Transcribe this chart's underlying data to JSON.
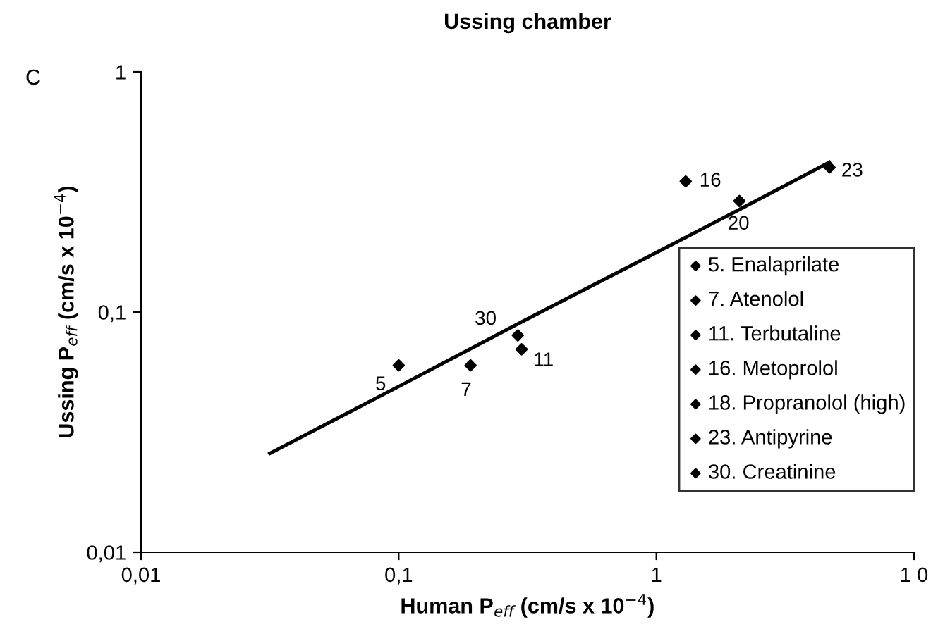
{
  "chart_data": {
    "type": "scatter",
    "title": "Ussing chamber",
    "xlabel": "Human P$_{eff}$ (cm/s x 10$^{−4}$)",
    "ylabel": "Ussing P$_{eff}$ (cm/s x 10$^{−4}$)",
    "log": "xy",
    "xlim": [
      0.01,
      10
    ],
    "ylim": [
      0.01,
      1
    ],
    "xticks": [
      {
        "value": 0.01,
        "label": "0,01"
      },
      {
        "value": 0.1,
        "label": "0,1"
      },
      1,
      {
        "value": 10,
        "label": "1 0"
      }
    ],
    "yticks": [
      {
        "value": 0.01,
        "label": "0,01"
      },
      {
        "value": 0.1,
        "label": "0,1"
      },
      1
    ],
    "grid": false,
    "legend": "right",
    "marker": "diamond",
    "series": [
      {
        "name": "5. Enalaprilate",
        "color": "#000000",
        "x": [
          0.1
        ],
        "values": [
          0.06
        ]
      },
      {
        "name": "7. Atenolol",
        "color": "#000000",
        "x": [
          0.19
        ],
        "values": [
          0.06
        ]
      },
      {
        "name": "11. Terbutaline",
        "color": "#000000",
        "x": [
          0.3
        ],
        "values": [
          0.07
        ]
      },
      {
        "name": "16. Metoprolol",
        "color": "#000000",
        "x": [
          1.3
        ],
        "values": [
          0.35
        ]
      },
      {
        "name": "18. Propranolol (high)",
        "color": "#000000",
        "x": [
          2.1
        ],
        "values": [
          0.29
        ]
      },
      {
        "name": "23. Antipyrine",
        "color": "#000000",
        "x": [
          4.7
        ],
        "values": [
          0.4
        ]
      },
      {
        "name": "30. Creatinine",
        "color": "#000000",
        "x": [
          0.29
        ],
        "values": [
          0.08
        ]
      },
      {
        "type": "line",
        "color": "#000000",
        "marker": "none",
        "x": [
          0.0316,
          0.1,
          0.3,
          1,
          2,
          4.69
        ],
        "values": [
          0.0258,
          0.049,
          0.091,
          0.177,
          0.26,
          0.42
        ]
      }
    ],
    "annotations": [
      "C",
      {
        "text": "5",
        "x": 0.1,
        "y": 0.06
      },
      {
        "text": "7",
        "x": 0.19,
        "y": 0.06
      },
      {
        "text": "11",
        "x": 0.3,
        "y": 0.07
      },
      {
        "text": "16",
        "x": 1.3,
        "y": 0.35
      },
      {
        "text": "20",
        "x": 2.1,
        "y": 0.29
      },
      {
        "text": "23",
        "x": 4.7,
        "y": 0.4
      },
      {
        "text": "30",
        "x": 0.29,
        "y": 0.08
      }
    ]
  }
}
